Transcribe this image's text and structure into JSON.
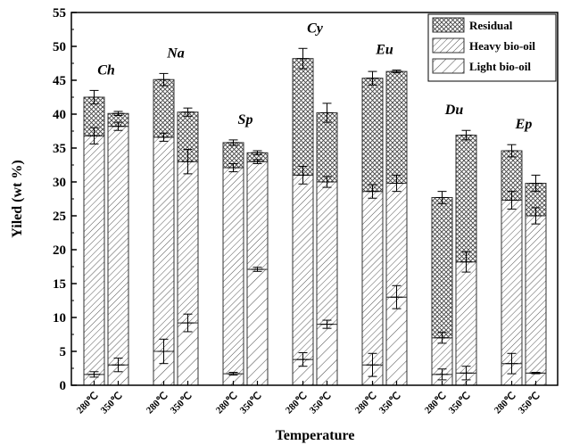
{
  "chart_data": {
    "type": "bar",
    "stacked": true,
    "xlabel": "Temperature",
    "ylabel": "Yiled (wt %)",
    "ylim": [
      0,
      55
    ],
    "yticks": [
      0,
      5,
      10,
      15,
      20,
      25,
      30,
      35,
      40,
      45,
      50,
      55
    ],
    "legend_position": "top-right",
    "series": [
      {
        "name": "Light bio-oil",
        "pattern": "sparse-diagonal"
      },
      {
        "name": "Heavy bio-oil",
        "pattern": "dense-diagonal"
      },
      {
        "name": "Residual",
        "pattern": "crosshatch"
      }
    ],
    "legend_order": [
      "Residual",
      "Heavy bio-oil",
      "Light bio-oil"
    ],
    "groups": [
      {
        "label": "Ch",
        "bars": [
          {
            "temp": "280℃",
            "light": 1.6,
            "light_err": 0.4,
            "heavy_top": 36.8,
            "heavy_err": 1.2,
            "total": 42.5,
            "total_err": 1.0
          },
          {
            "temp": "350℃",
            "light": 3.0,
            "light_err": 1.0,
            "heavy_top": 38.2,
            "heavy_err": 0.6,
            "total": 40.1,
            "total_err": 0.3
          }
        ]
      },
      {
        "label": "Na",
        "bars": [
          {
            "temp": "280℃",
            "light": 5.0,
            "light_err": 1.8,
            "heavy_top": 36.6,
            "heavy_err": 0.6,
            "total": 45.1,
            "total_err": 0.9
          },
          {
            "temp": "350℃",
            "light": 9.2,
            "light_err": 1.3,
            "heavy_top": 33.0,
            "heavy_err": 1.8,
            "total": 40.3,
            "total_err": 0.6
          }
        ]
      },
      {
        "label": "Sp",
        "bars": [
          {
            "temp": "280℃",
            "light": 1.7,
            "light_err": 0.2,
            "heavy_top": 32.1,
            "heavy_err": 0.6,
            "total": 35.8,
            "total_err": 0.4
          },
          {
            "temp": "350℃",
            "light": 17.1,
            "light_err": 0.3,
            "heavy_top": 33.0,
            "heavy_err": 0.3,
            "total": 34.3,
            "total_err": 0.3
          }
        ]
      },
      {
        "label": "Cy",
        "bars": [
          {
            "temp": "280℃",
            "light": 3.8,
            "light_err": 1.0,
            "heavy_top": 31.0,
            "heavy_err": 1.3,
            "total": 48.2,
            "total_err": 1.5
          },
          {
            "temp": "350℃",
            "light": 9.0,
            "light_err": 0.6,
            "heavy_top": 30.0,
            "heavy_err": 0.8,
            "total": 40.2,
            "total_err": 1.4
          }
        ]
      },
      {
        "label": "Eu",
        "bars": [
          {
            "temp": "280℃",
            "light": 3.0,
            "light_err": 1.7,
            "heavy_top": 28.6,
            "heavy_err": 1.0,
            "total": 45.3,
            "total_err": 1.0
          },
          {
            "temp": "350℃",
            "light": 13.0,
            "light_err": 1.7,
            "heavy_top": 29.8,
            "heavy_err": 1.2,
            "total": 46.3,
            "total_err": 0.2
          }
        ]
      },
      {
        "label": "Du",
        "bars": [
          {
            "temp": "280℃",
            "light": 1.6,
            "light_err": 0.8,
            "heavy_top": 7.0,
            "heavy_err": 0.8,
            "total": 27.7,
            "total_err": 0.9
          },
          {
            "temp": "350℃",
            "light": 1.8,
            "light_err": 1.0,
            "heavy_top": 18.2,
            "heavy_err": 1.5,
            "total": 36.9,
            "total_err": 0.7
          }
        ]
      },
      {
        "label": "Ep",
        "bars": [
          {
            "temp": "280℃",
            "light": 3.2,
            "light_err": 1.5,
            "heavy_top": 27.3,
            "heavy_err": 1.3,
            "total": 34.6,
            "total_err": 0.9
          },
          {
            "temp": "350℃",
            "light": 1.8,
            "light_err": 0.1,
            "heavy_top": 25.0,
            "heavy_err": 1.2,
            "total": 29.8,
            "total_err": 1.2
          }
        ]
      }
    ]
  }
}
